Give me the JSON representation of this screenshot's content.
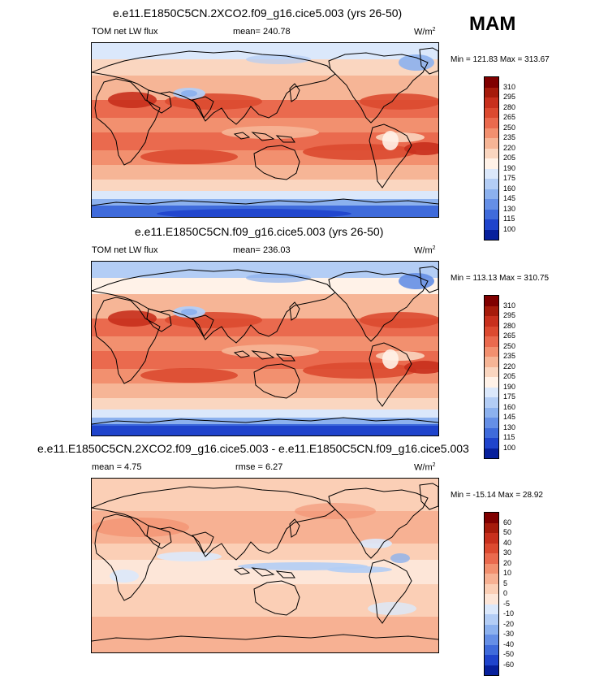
{
  "season_label": "MAM",
  "panels": [
    {
      "title": "e.e11.E1850C5CN.2XCO2.f09_g16.cice5.003 (yrs 26-50)",
      "left_label": "TOM net LW flux",
      "center_label": "mean= 240.78",
      "units": "W/m",
      "units_sup": "2",
      "minmax": "Min = 121.83 Max = 313.67",
      "scale": "abs",
      "labels": [
        "310",
        "295",
        "280",
        "265",
        "250",
        "235",
        "220",
        "205",
        "190",
        "175",
        "160",
        "145",
        "130",
        "115",
        "100"
      ]
    },
    {
      "title": "e.e11.E1850C5CN.f09_g16.cice5.003 (yrs 26-50)",
      "left_label": "TOM net LW flux",
      "center_label": "mean= 236.03",
      "units": "W/m",
      "units_sup": "2",
      "minmax": "Min = 113.13 Max = 310.75",
      "scale": "abs",
      "labels": [
        "310",
        "295",
        "280",
        "265",
        "250",
        "235",
        "220",
        "205",
        "190",
        "175",
        "160",
        "145",
        "130",
        "115",
        "100"
      ]
    },
    {
      "title": "e.e11.E1850C5CN.2XCO2.f09_g16.cice5.003 - e.e11.E1850C5CN.f09_g16.cice5.003",
      "left_label": "mean =   4.75",
      "center_label": "rmse =   6.27",
      "units": "W/m",
      "units_sup": "2",
      "minmax": "Min = -15.14 Max =  28.92",
      "scale": "diff",
      "labels": [
        "60",
        "50",
        "40",
        "30",
        "20",
        "10",
        "5",
        "0",
        "-5",
        "-10",
        "-20",
        "-30",
        "-40",
        "-50",
        "-60"
      ]
    }
  ],
  "colorbars": {
    "abs": [
      "#800000",
      "#a61b0b",
      "#c8301d",
      "#dc4a30",
      "#ea6a4e",
      "#f2906f",
      "#f6b596",
      "#fad6c0",
      "#fff2e8",
      "#dbe8fb",
      "#b3cdf5",
      "#8cb1ee",
      "#658fe6",
      "#3f6bdb",
      "#1f44cc",
      "#07209c"
    ],
    "diff": [
      "#800000",
      "#a61b0b",
      "#c8301d",
      "#dc4a30",
      "#ea6a4e",
      "#f2906f",
      "#f7b193",
      "#fbcfb6",
      "#fde6d8",
      "#dbe8fb",
      "#b3cdf5",
      "#8cb1ee",
      "#658fe6",
      "#3f6bdb",
      "#1f44cc",
      "#07209c"
    ]
  }
}
